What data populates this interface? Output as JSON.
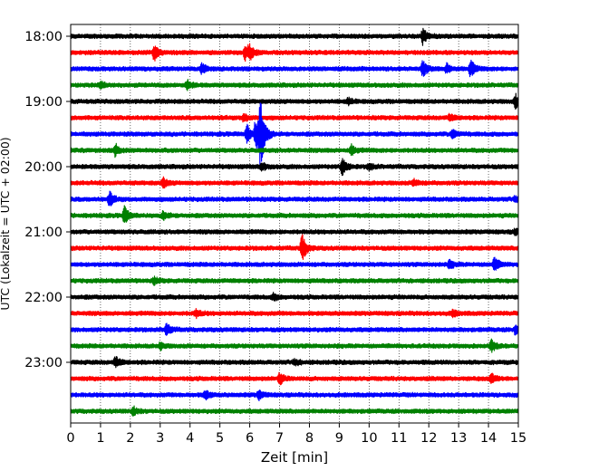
{
  "chart_data": {
    "type": "line",
    "title": "",
    "xlabel": "Zeit  [min]",
    "ylabel": "UTC (Lokalzeit = UTC + 02:00)",
    "xlim": [
      0,
      15
    ],
    "x_ticks": [
      0,
      1,
      2,
      3,
      4,
      5,
      6,
      7,
      8,
      9,
      10,
      11,
      12,
      13,
      14,
      15
    ],
    "y_tick_labels": [
      "18:00",
      "19:00",
      "20:00",
      "21:00",
      "22:00",
      "23:00"
    ],
    "y_tick_traces": [
      0,
      4,
      8,
      12,
      16,
      20
    ],
    "grid_x": true,
    "color_cycle": [
      "#000000",
      "#ff0000",
      "#0000ff",
      "#008000"
    ],
    "traces": [
      {
        "start": "18:00",
        "events": [
          {
            "t": 11.8,
            "amp": 0.5
          }
        ]
      },
      {
        "start": "18:15",
        "events": [
          {
            "t": 2.8,
            "amp": 0.5
          },
          {
            "t": 5.85,
            "amp": 0.55
          },
          {
            "t": 6.0,
            "amp": 0.35
          }
        ]
      },
      {
        "start": "18:30",
        "events": [
          {
            "t": 4.4,
            "amp": 0.35
          },
          {
            "t": 11.8,
            "amp": 0.5
          },
          {
            "t": 12.6,
            "amp": 0.3
          },
          {
            "t": 13.4,
            "amp": 0.55
          }
        ]
      },
      {
        "start": "18:45",
        "events": [
          {
            "t": 1.0,
            "amp": 0.25
          },
          {
            "t": 3.9,
            "amp": 0.3
          }
        ]
      },
      {
        "start": "19:00",
        "events": [
          {
            "t": 14.9,
            "amp": 0.45
          },
          {
            "t": 9.3,
            "amp": 0.2
          }
        ]
      },
      {
        "start": "19:15",
        "events": [
          {
            "t": 5.8,
            "amp": 0.25
          },
          {
            "t": 12.7,
            "amp": 0.2
          }
        ]
      },
      {
        "start": "19:30",
        "events": [
          {
            "t": 6.2,
            "amp": 1.1
          },
          {
            "t": 6.35,
            "amp": 2.3
          },
          {
            "t": 5.9,
            "amp": 0.6
          },
          {
            "t": 12.8,
            "amp": 0.3
          }
        ]
      },
      {
        "start": "19:45",
        "events": [
          {
            "t": 1.5,
            "amp": 0.4
          },
          {
            "t": 9.4,
            "amp": 0.3
          }
        ]
      },
      {
        "start": "20:00",
        "events": [
          {
            "t": 9.1,
            "amp": 0.55
          },
          {
            "t": 10.0,
            "amp": 0.2
          },
          {
            "t": 6.4,
            "amp": 0.25
          }
        ]
      },
      {
        "start": "20:15",
        "events": [
          {
            "t": 3.1,
            "amp": 0.3
          },
          {
            "t": 11.5,
            "amp": 0.2
          }
        ]
      },
      {
        "start": "20:30",
        "events": [
          {
            "t": 1.3,
            "amp": 0.45
          },
          {
            "t": 14.9,
            "amp": 0.2
          }
        ]
      },
      {
        "start": "20:45",
        "events": [
          {
            "t": 1.8,
            "amp": 0.55
          },
          {
            "t": 3.1,
            "amp": 0.25
          }
        ]
      },
      {
        "start": "21:00",
        "events": [
          {
            "t": 14.9,
            "amp": 0.2
          }
        ]
      },
      {
        "start": "21:15",
        "events": [
          {
            "t": 7.75,
            "amp": 0.9
          }
        ]
      },
      {
        "start": "21:30",
        "events": [
          {
            "t": 14.2,
            "amp": 0.45
          },
          {
            "t": 12.7,
            "amp": 0.25
          }
        ]
      },
      {
        "start": "21:45",
        "events": [
          {
            "t": 2.8,
            "amp": 0.2
          }
        ]
      },
      {
        "start": "22:00",
        "events": [
          {
            "t": 6.8,
            "amp": 0.2
          }
        ]
      },
      {
        "start": "22:15",
        "events": [
          {
            "t": 4.2,
            "amp": 0.25
          },
          {
            "t": 12.8,
            "amp": 0.2
          }
        ]
      },
      {
        "start": "22:30",
        "events": [
          {
            "t": 3.2,
            "amp": 0.4
          },
          {
            "t": 14.9,
            "amp": 0.3
          }
        ]
      },
      {
        "start": "22:45",
        "events": [
          {
            "t": 14.1,
            "amp": 0.35
          },
          {
            "t": 3.0,
            "amp": 0.2
          }
        ]
      },
      {
        "start": "23:00",
        "events": [
          {
            "t": 1.5,
            "amp": 0.35
          },
          {
            "t": 7.5,
            "amp": 0.2
          }
        ]
      },
      {
        "start": "23:15",
        "events": [
          {
            "t": 7.0,
            "amp": 0.35
          },
          {
            "t": 14.1,
            "amp": 0.3
          }
        ]
      },
      {
        "start": "23:30",
        "events": [
          {
            "t": 4.5,
            "amp": 0.3
          },
          {
            "t": 6.3,
            "amp": 0.3
          }
        ]
      },
      {
        "start": "23:45",
        "events": [
          {
            "t": 2.1,
            "amp": 0.25
          }
        ]
      }
    ]
  }
}
